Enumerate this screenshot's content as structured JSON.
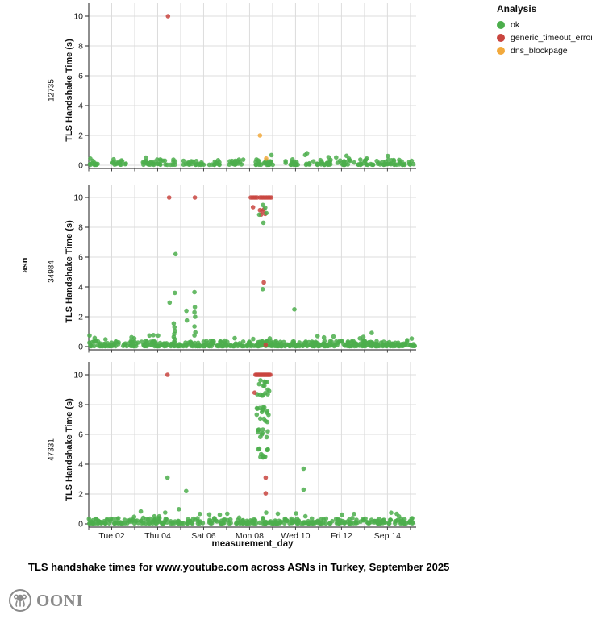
{
  "title": "TLS handshake times for www.youtube.com across ASNs in Turkey, September 2025",
  "branding": {
    "logo_text": "OONI"
  },
  "legend": {
    "title": "Analysis",
    "items": [
      {
        "value": "ok",
        "label": "ok",
        "color": "#4cae4c"
      },
      {
        "value": "generic_timeout_error",
        "label": "generic_timeout_error",
        "color": "#c9453f"
      },
      {
        "value": "dns_blockpage",
        "label": "dns_blockpage",
        "color": "#f2a93c"
      }
    ]
  },
  "chart_data": {
    "type": "scatter",
    "title": "TLS handshake times for www.youtube.com across ASNs in Turkey, September 2025",
    "xlabel": "measurement_day",
    "ylabel": "TLS Handshake Time (s)",
    "row_label": "asn",
    "x_tick_labels": [
      "Tue 02",
      "Thu 04",
      "Sat 06",
      "Mon 08",
      "Wed 10",
      "Fri 12",
      "Sep 14"
    ],
    "x_tick_days": [
      2,
      4,
      6,
      8,
      10,
      12,
      14
    ],
    "x_domain_days": [
      1,
      15.25
    ],
    "y_ticks": [
      0,
      2,
      4,
      6,
      8,
      10
    ],
    "ylim": [
      0,
      10
    ],
    "grid": true,
    "legend_position": "top-right",
    "facets": [
      {
        "asn": "12735",
        "points": [
          {
            "d": 4.45,
            "y": 10.0,
            "c": "generic_timeout_error"
          },
          {
            "d": 8.45,
            "y": 2.0,
            "c": "dns_blockpage"
          },
          {
            "d": 8.72,
            "y": 0.45,
            "c": "dns_blockpage"
          },
          {
            "d": 8.95,
            "y": 0.68,
            "c": "ok"
          }
        ],
        "clusters": [],
        "baseline_segments": [
          [
            1.05,
            1.45,
            12
          ],
          [
            2.0,
            2.62,
            16
          ],
          [
            3.35,
            4.45,
            30
          ],
          [
            4.55,
            4.8,
            6
          ],
          [
            5.05,
            5.55,
            10
          ],
          [
            5.65,
            6.1,
            12
          ],
          [
            6.2,
            6.7,
            12
          ],
          [
            7.0,
            7.75,
            16
          ],
          [
            8.2,
            9.05,
            24
          ],
          [
            9.55,
            10.1,
            16
          ],
          [
            10.4,
            11.55,
            30
          ],
          [
            11.7,
            12.4,
            18
          ],
          [
            12.55,
            13.4,
            20
          ],
          [
            13.5,
            14.4,
            22
          ],
          [
            14.5,
            15.15,
            14
          ]
        ]
      },
      {
        "asn": "34984",
        "points": [
          {
            "d": 4.5,
            "y": 10.0,
            "c": "generic_timeout_error"
          },
          {
            "d": 5.62,
            "y": 10.0,
            "c": "generic_timeout_error"
          },
          {
            "d": 8.05,
            "y": 10.0,
            "c": "generic_timeout_error"
          },
          {
            "d": 8.12,
            "y": 10.0,
            "c": "generic_timeout_error"
          },
          {
            "d": 8.19,
            "y": 10.0,
            "c": "generic_timeout_error"
          },
          {
            "d": 8.26,
            "y": 10.0,
            "c": "generic_timeout_error"
          },
          {
            "d": 8.33,
            "y": 10.0,
            "c": "generic_timeout_error"
          },
          {
            "d": 8.45,
            "y": 10.0,
            "c": "generic_timeout_error"
          },
          {
            "d": 8.52,
            "y": 10.0,
            "c": "generic_timeout_error"
          },
          {
            "d": 8.59,
            "y": 10.0,
            "c": "generic_timeout_error"
          },
          {
            "d": 8.66,
            "y": 10.0,
            "c": "generic_timeout_error"
          },
          {
            "d": 8.73,
            "y": 10.0,
            "c": "generic_timeout_error"
          },
          {
            "d": 8.8,
            "y": 10.0,
            "c": "generic_timeout_error"
          },
          {
            "d": 8.87,
            "y": 10.0,
            "c": "generic_timeout_error"
          },
          {
            "d": 8.94,
            "y": 10.0,
            "c": "generic_timeout_error"
          },
          {
            "d": 8.15,
            "y": 9.35,
            "c": "generic_timeout_error"
          },
          {
            "d": 8.45,
            "y": 9.15,
            "c": "generic_timeout_error"
          },
          {
            "d": 8.55,
            "y": 9.08,
            "c": "generic_timeout_error"
          },
          {
            "d": 8.62,
            "y": 9.2,
            "c": "generic_timeout_error"
          },
          {
            "d": 8.5,
            "y": 8.85,
            "c": "generic_timeout_error"
          },
          {
            "d": 8.68,
            "y": 8.9,
            "c": "generic_timeout_error"
          },
          {
            "d": 8.62,
            "y": 4.3,
            "c": "generic_timeout_error"
          },
          {
            "d": 8.7,
            "y": 0.12,
            "c": "generic_timeout_error"
          },
          {
            "d": 8.58,
            "y": 9.5,
            "c": "ok"
          },
          {
            "d": 8.42,
            "y": 8.85,
            "c": "ok"
          },
          {
            "d": 8.68,
            "y": 9.32,
            "c": "ok"
          },
          {
            "d": 8.73,
            "y": 8.95,
            "c": "ok"
          },
          {
            "d": 8.6,
            "y": 8.3,
            "c": "ok"
          },
          {
            "d": 8.57,
            "y": 3.85,
            "c": "ok"
          },
          {
            "d": 4.78,
            "y": 6.2,
            "c": "ok"
          },
          {
            "d": 4.75,
            "y": 3.6,
            "c": "ok"
          },
          {
            "d": 4.52,
            "y": 2.95,
            "c": "ok"
          },
          {
            "d": 4.7,
            "y": 1.55,
            "c": "ok"
          },
          {
            "d": 4.73,
            "y": 1.3,
            "c": "ok"
          },
          {
            "d": 4.76,
            "y": 1.05,
            "c": "ok"
          },
          {
            "d": 4.72,
            "y": 0.85,
            "c": "ok"
          },
          {
            "d": 4.7,
            "y": 0.65,
            "c": "ok"
          },
          {
            "d": 4.74,
            "y": 0.5,
            "c": "ok"
          },
          {
            "d": 5.25,
            "y": 2.4,
            "c": "ok"
          },
          {
            "d": 5.27,
            "y": 1.75,
            "c": "ok"
          },
          {
            "d": 5.6,
            "y": 3.65,
            "c": "ok"
          },
          {
            "d": 5.62,
            "y": 2.65,
            "c": "ok"
          },
          {
            "d": 5.6,
            "y": 2.3,
            "c": "ok"
          },
          {
            "d": 5.63,
            "y": 2.0,
            "c": "ok"
          },
          {
            "d": 5.6,
            "y": 1.35,
            "c": "ok"
          },
          {
            "d": 5.64,
            "y": 0.95,
            "c": "ok"
          },
          {
            "d": 5.6,
            "y": 0.75,
            "c": "ok"
          },
          {
            "d": 9.95,
            "y": 2.5,
            "c": "ok"
          },
          {
            "d": 12.8,
            "y": 0.55,
            "c": "ok"
          }
        ],
        "clusters": [],
        "baseline_segments": [
          [
            1.0,
            2.35,
            45
          ],
          [
            2.5,
            3.15,
            22
          ],
          [
            3.3,
            4.65,
            50
          ],
          [
            4.7,
            5.85,
            40
          ],
          [
            5.95,
            7.5,
            55
          ],
          [
            7.55,
            8.2,
            18
          ],
          [
            8.25,
            10.25,
            80
          ],
          [
            10.3,
            12.1,
            65
          ],
          [
            12.15,
            13.65,
            65
          ],
          [
            13.7,
            15.2,
            55
          ]
        ]
      },
      {
        "asn": "47331",
        "points": [
          {
            "d": 4.43,
            "y": 10.0,
            "c": "generic_timeout_error"
          },
          {
            "d": 8.26,
            "y": 10.0,
            "c": "generic_timeout_error"
          },
          {
            "d": 8.3,
            "y": 10.0,
            "c": "generic_timeout_error"
          },
          {
            "d": 8.34,
            "y": 10.0,
            "c": "generic_timeout_error"
          },
          {
            "d": 8.38,
            "y": 10.0,
            "c": "generic_timeout_error"
          },
          {
            "d": 8.42,
            "y": 10.0,
            "c": "generic_timeout_error"
          },
          {
            "d": 8.46,
            "y": 10.0,
            "c": "generic_timeout_error"
          },
          {
            "d": 8.5,
            "y": 10.0,
            "c": "generic_timeout_error"
          },
          {
            "d": 8.54,
            "y": 10.0,
            "c": "generic_timeout_error"
          },
          {
            "d": 8.58,
            "y": 10.0,
            "c": "generic_timeout_error"
          },
          {
            "d": 8.62,
            "y": 10.0,
            "c": "generic_timeout_error"
          },
          {
            "d": 8.66,
            "y": 10.0,
            "c": "generic_timeout_error"
          },
          {
            "d": 8.7,
            "y": 10.0,
            "c": "generic_timeout_error"
          },
          {
            "d": 8.74,
            "y": 10.0,
            "c": "generic_timeout_error"
          },
          {
            "d": 8.78,
            "y": 10.0,
            "c": "generic_timeout_error"
          },
          {
            "d": 8.82,
            "y": 10.0,
            "c": "generic_timeout_error"
          },
          {
            "d": 8.86,
            "y": 10.0,
            "c": "generic_timeout_error"
          },
          {
            "d": 8.9,
            "y": 10.0,
            "c": "generic_timeout_error"
          },
          {
            "d": 8.22,
            "y": 8.8,
            "c": "generic_timeout_error"
          },
          {
            "d": 8.7,
            "y": 3.1,
            "c": "generic_timeout_error"
          },
          {
            "d": 8.7,
            "y": 2.05,
            "c": "generic_timeout_error"
          },
          {
            "d": 4.43,
            "y": 3.1,
            "c": "ok"
          },
          {
            "d": 5.24,
            "y": 2.2,
            "c": "ok"
          },
          {
            "d": 8.72,
            "y": 0.75,
            "c": "ok"
          },
          {
            "d": 10.35,
            "y": 3.7,
            "c": "ok"
          },
          {
            "d": 10.35,
            "y": 2.3,
            "c": "ok"
          }
        ],
        "clusters": [
          [
            8.3,
            8.88,
            5.75,
            9.65,
            40,
            "ok"
          ],
          [
            8.35,
            8.8,
            4.4,
            5.2,
            12,
            "ok"
          ]
        ],
        "baseline_segments": [
          [
            1.0,
            3.0,
            55
          ],
          [
            3.0,
            5.5,
            60
          ],
          [
            5.5,
            8.1,
            60
          ],
          [
            8.1,
            10.5,
            65
          ],
          [
            10.5,
            13.0,
            60
          ],
          [
            13.0,
            15.2,
            55
          ]
        ]
      }
    ]
  }
}
